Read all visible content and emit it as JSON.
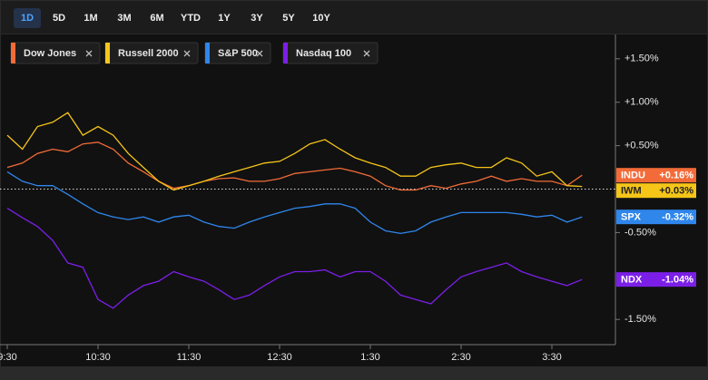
{
  "ranges": {
    "options": [
      "1D",
      "5D",
      "1M",
      "3M",
      "6M",
      "YTD",
      "1Y",
      "3Y",
      "5Y",
      "10Y"
    ],
    "selected": "1D"
  },
  "chart_data": {
    "type": "line",
    "x": [
      "9:30",
      "9:40",
      "9:50",
      "10:00",
      "10:10",
      "10:20",
      "10:30",
      "10:40",
      "10:50",
      "11:00",
      "11:10",
      "11:20",
      "11:30",
      "11:40",
      "11:50",
      "12:00",
      "12:10",
      "12:20",
      "12:30",
      "12:40",
      "12:50",
      "1:00",
      "1:10",
      "1:20",
      "1:30",
      "1:40",
      "1:50",
      "2:00",
      "2:10",
      "2:20",
      "2:30",
      "2:40",
      "2:50",
      "3:00",
      "3:10",
      "3:20",
      "3:30",
      "3:40",
      "3:50"
    ],
    "xticks": [
      "9:30",
      "10:30",
      "11:30",
      "12:30",
      "1:30",
      "2:30",
      "3:30"
    ],
    "ylim": [
      -1.79,
      1.78
    ],
    "yticks": [
      {
        "value": 1.5,
        "label": "+1.50%"
      },
      {
        "value": 1.0,
        "label": "+1.00%"
      },
      {
        "value": 0.5,
        "label": "+0.50%"
      },
      {
        "value": -0.5,
        "label": "-0.50%"
      },
      {
        "value": -1.5,
        "label": "-1.50%"
      }
    ],
    "series": [
      {
        "name": "Dow Jones",
        "ticker": "INDU",
        "color": "#f26b38",
        "last_value": 0.16,
        "last_label": "+0.16%",
        "values": [
          0.25,
          0.3,
          0.41,
          0.46,
          0.43,
          0.52,
          0.54,
          0.46,
          0.3,
          0.2,
          0.09,
          0.01,
          0.04,
          0.09,
          0.12,
          0.13,
          0.09,
          0.09,
          0.12,
          0.18,
          0.2,
          0.22,
          0.24,
          0.2,
          0.15,
          0.04,
          -0.01,
          -0.01,
          0.04,
          0.01,
          0.06,
          0.09,
          0.15,
          0.09,
          0.12,
          0.09,
          0.09,
          0.04,
          0.16
        ]
      },
      {
        "name": "Russell 2000",
        "ticker": "IWM",
        "color": "#f5c518",
        "last_value": 0.03,
        "last_label": "+0.03%",
        "values": [
          0.62,
          0.46,
          0.72,
          0.77,
          0.88,
          0.62,
          0.72,
          0.62,
          0.41,
          0.25,
          0.09,
          -0.01,
          0.04,
          0.09,
          0.15,
          0.2,
          0.25,
          0.3,
          0.32,
          0.41,
          0.52,
          0.57,
          0.46,
          0.36,
          0.3,
          0.25,
          0.15,
          0.15,
          0.25,
          0.28,
          0.3,
          0.25,
          0.25,
          0.36,
          0.3,
          0.15,
          0.2,
          0.04,
          0.03
        ]
      },
      {
        "name": "S&P 500",
        "ticker": "SPX",
        "color": "#2f86eb",
        "last_value": -0.32,
        "last_label": "-0.32%",
        "values": [
          0.2,
          0.09,
          0.04,
          0.04,
          -0.06,
          -0.17,
          -0.27,
          -0.32,
          -0.35,
          -0.32,
          -0.38,
          -0.32,
          -0.3,
          -0.38,
          -0.43,
          -0.45,
          -0.38,
          -0.32,
          -0.27,
          -0.22,
          -0.2,
          -0.17,
          -0.17,
          -0.22,
          -0.38,
          -0.48,
          -0.51,
          -0.48,
          -0.38,
          -0.32,
          -0.27,
          -0.27,
          -0.27,
          -0.27,
          -0.29,
          -0.32,
          -0.3,
          -0.38,
          -0.32
        ]
      },
      {
        "name": "Nasdaq 100",
        "ticker": "NDX",
        "color": "#7b1fe8",
        "last_value": -1.04,
        "last_label": "-1.04%",
        "values": [
          -0.22,
          -0.33,
          -0.43,
          -0.59,
          -0.85,
          -0.9,
          -1.27,
          -1.37,
          -1.22,
          -1.11,
          -1.06,
          -0.95,
          -1.01,
          -1.06,
          -1.16,
          -1.27,
          -1.22,
          -1.11,
          -1.01,
          -0.95,
          -0.95,
          -0.93,
          -1.01,
          -0.95,
          -0.95,
          -1.06,
          -1.22,
          -1.27,
          -1.32,
          -1.16,
          -1.01,
          -0.95,
          -0.9,
          -0.85,
          -0.95,
          -1.01,
          -1.06,
          -1.11,
          -1.04
        ]
      }
    ]
  }
}
